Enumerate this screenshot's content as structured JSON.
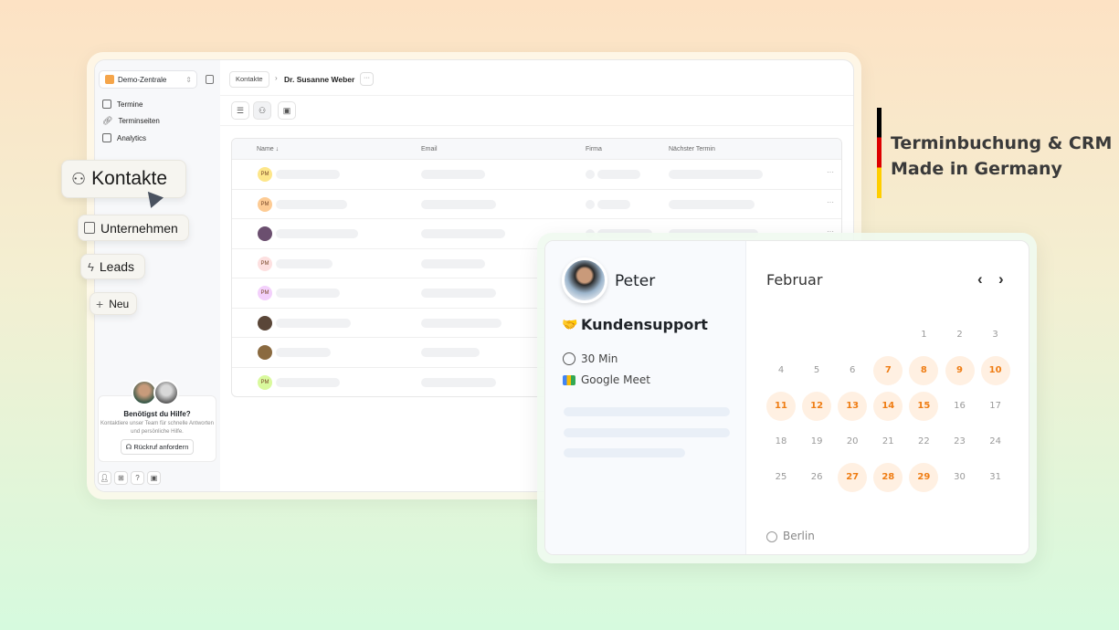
{
  "sidebar": {
    "workspace": "Demo-Zentrale",
    "items": [
      {
        "label": "Termine",
        "icon": "calendar-icon"
      },
      {
        "label": "Terminseiten",
        "icon": "link-icon"
      },
      {
        "label": "Analytics",
        "icon": "building-chart-icon"
      }
    ],
    "help": {
      "title": "Benötigst du Hilfe?",
      "text": "Kontaktiere unser Team für schnelle Antworten und persönliche Hilfe.",
      "button": "Rückruf anfordern"
    }
  },
  "floating_nav": [
    {
      "label": "Kontakte",
      "icon": "users-icon"
    },
    {
      "label": "Unternehmen",
      "icon": "building-icon"
    },
    {
      "label": "Leads",
      "icon": "bolt-icon"
    },
    {
      "label": "Neu",
      "icon": "plus-icon"
    }
  ],
  "header": {
    "breadcrumb_parent": "Kontakte",
    "breadcrumb_current": "Dr. Susanne Weber",
    "more": "···"
  },
  "table": {
    "columns": [
      "Name ↓",
      "Email",
      "Firma",
      "Nächster Termin"
    ],
    "rows": [
      {
        "initials": "PM",
        "color": "#fde68a"
      },
      {
        "initials": "PM",
        "color": "#fdcb94"
      },
      {
        "initials": "",
        "color": "#6b4f6f"
      },
      {
        "initials": "PM",
        "color": "#fde0e0"
      },
      {
        "initials": "PM",
        "color": "#f3d0fb"
      },
      {
        "initials": "",
        "color": "#5a4638"
      },
      {
        "initials": "",
        "color": "#8a6a40"
      },
      {
        "initials": "PM",
        "color": "#d9f99d"
      }
    ]
  },
  "booking": {
    "host": "Peter",
    "event": "Kundensupport",
    "event_emoji": "🤝",
    "duration": "30 Min",
    "location": "Google Meet",
    "month": "Februar",
    "timezone": "Berlin",
    "prev": "‹",
    "next": "›",
    "days": [
      1,
      2,
      3,
      4,
      5,
      6,
      7,
      8,
      9,
      10,
      11,
      12,
      13,
      14,
      15,
      16,
      17,
      18,
      19,
      20,
      21,
      22,
      23,
      24,
      25,
      26,
      27,
      28,
      29,
      30,
      31
    ],
    "available": [
      7,
      8,
      9,
      10,
      11,
      12,
      13,
      14,
      15,
      27,
      28,
      29
    ],
    "first_weekday_index": 4,
    "accent": "#ef7d14"
  },
  "tagline": {
    "line1": "Terminbuchung & CRM",
    "line2": "Made in Germany",
    "flag_colors": [
      "#000000",
      "#dd0000",
      "#ffce00"
    ]
  }
}
